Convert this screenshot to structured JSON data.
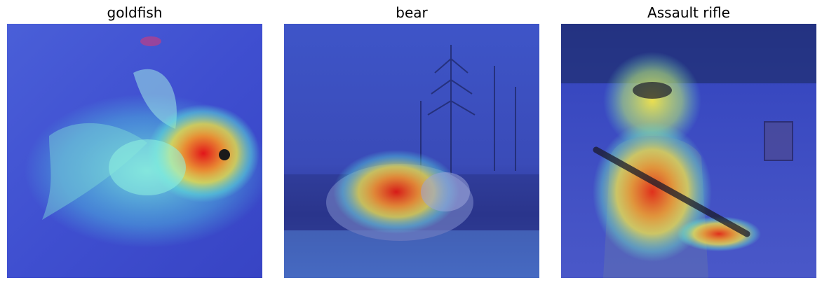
{
  "panels": [
    {
      "title": "goldfish",
      "subject": "goldfish",
      "icon": "goldfish-heatmap-image",
      "colors": {
        "base": "#3f4fd0",
        "warm": "#e2151a",
        "mid": "#f6e13a",
        "cool": "#5ee8d8"
      }
    },
    {
      "title": "bear",
      "subject": "bear",
      "icon": "bear-heatmap-image",
      "colors": {
        "base": "#2c3aa8",
        "warm": "#d61a18",
        "mid": "#f2e23c",
        "cool": "#55d6e0"
      }
    },
    {
      "title": "Assault rifle",
      "subject": "soldier with assault rifle",
      "icon": "soldier-heatmap-image",
      "colors": {
        "base": "#3848c0",
        "warm": "#e0301c",
        "mid": "#f4e64a",
        "cool": "#6ce4c8"
      }
    }
  ]
}
